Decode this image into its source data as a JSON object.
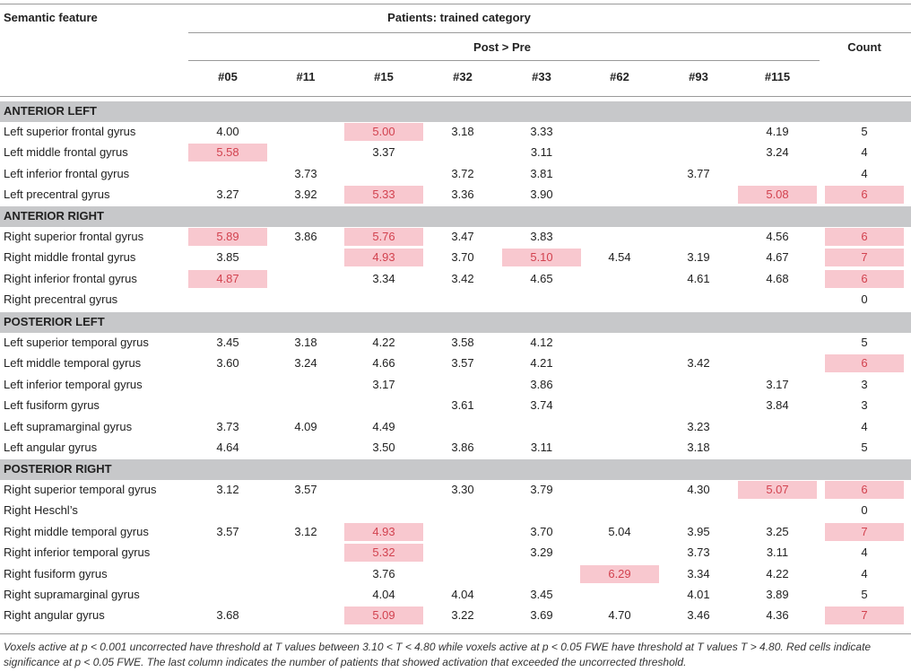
{
  "header": {
    "semantic_feature": "Semantic feature",
    "group": "Patients: trained category",
    "contrast": "Post > Pre",
    "count": "Count",
    "patients": [
      "#05",
      "#11",
      "#15",
      "#32",
      "#33",
      "#62",
      "#93",
      "#115"
    ]
  },
  "colors": {
    "significant_bg": "#f8c8cf",
    "significant_text": "#d2424f",
    "section_bg": "#c7c8ca"
  },
  "sections": [
    {
      "title": "ANTERIOR LEFT",
      "rows": [
        {
          "label": "Left superior frontal gyrus",
          "values": [
            "4.00",
            "",
            "5.00",
            "3.18",
            "3.33",
            "",
            "",
            "4.19"
          ],
          "count": "5",
          "sig": [
            2
          ]
        },
        {
          "label": "Left middle frontal gyrus",
          "values": [
            "5.58",
            "",
            "3.37",
            "",
            "3.11",
            "",
            "",
            "3.24"
          ],
          "count": "4",
          "sig": [
            0
          ]
        },
        {
          "label": "Left inferior frontal gyrus",
          "values": [
            "",
            "3.73",
            "",
            "3.72",
            "3.81",
            "",
            "3.77",
            ""
          ],
          "count": "4",
          "sig": []
        },
        {
          "label": "Left precentral gyrus",
          "values": [
            "3.27",
            "3.92",
            "5.33",
            "3.36",
            "3.90",
            "",
            "",
            "5.08"
          ],
          "count": "6",
          "sig": [
            2,
            7,
            8
          ]
        }
      ]
    },
    {
      "title": "ANTERIOR RIGHT",
      "rows": [
        {
          "label": "Right superior frontal gyrus",
          "values": [
            "5.89",
            "3.86",
            "5.76",
            "3.47",
            "3.83",
            "",
            "",
            "4.56"
          ],
          "count": "6",
          "sig": [
            0,
            2,
            8
          ]
        },
        {
          "label": "Right middle frontal gyrus",
          "values": [
            "3.85",
            "",
            "4.93",
            "3.70",
            "5.10",
            "4.54",
            "3.19",
            "4.67"
          ],
          "count": "7",
          "sig": [
            2,
            4,
            8
          ]
        },
        {
          "label": "Right inferior frontal gyrus",
          "values": [
            "4.87",
            "",
            "3.34",
            "3.42",
            "4.65",
            "",
            "4.61",
            "4.68"
          ],
          "count": "6",
          "sig": [
            0,
            8
          ]
        },
        {
          "label": "Right precentral gyrus",
          "values": [
            "",
            "",
            "",
            "",
            "",
            "",
            "",
            ""
          ],
          "count": "0",
          "sig": []
        }
      ]
    },
    {
      "title": "POSTERIOR LEFT",
      "rows": [
        {
          "label": "Left superior temporal gyrus",
          "values": [
            "3.45",
            "3.18",
            "4.22",
            "3.58",
            "4.12",
            "",
            "",
            ""
          ],
          "count": "5",
          "sig": []
        },
        {
          "label": "Left middle temporal gyrus",
          "values": [
            "3.60",
            "3.24",
            "4.66",
            "3.57",
            "4.21",
            "",
            "3.42",
            ""
          ],
          "count": "6",
          "sig": [
            8
          ]
        },
        {
          "label": "Left inferior temporal gyrus",
          "values": [
            "",
            "",
            "3.17",
            "",
            "3.86",
            "",
            "",
            "3.17"
          ],
          "count": "3",
          "sig": []
        },
        {
          "label": "Left fusiform gyrus",
          "values": [
            "",
            "",
            "",
            "3.61",
            "3.74",
            "",
            "",
            "3.84"
          ],
          "count": "3",
          "sig": []
        },
        {
          "label": "Left supramarginal gyrus",
          "values": [
            "3.73",
            "4.09",
            "4.49",
            "",
            "",
            "",
            "3.23",
            ""
          ],
          "count": "4",
          "sig": []
        },
        {
          "label": "Left angular gyrus",
          "values": [
            "4.64",
            "",
            "3.50",
            "3.86",
            "3.11",
            "",
            "3.18",
            ""
          ],
          "count": "5",
          "sig": []
        }
      ]
    },
    {
      "title": "POSTERIOR RIGHT",
      "rows": [
        {
          "label": "Right superior temporal gyrus",
          "values": [
            "3.12",
            "3.57",
            "",
            "3.30",
            "3.79",
            "",
            "4.30",
            "5.07"
          ],
          "count": "6",
          "sig": [
            7,
            8
          ]
        },
        {
          "label": "Right Heschl’s",
          "values": [
            "",
            "",
            "",
            "",
            "",
            "",
            "",
            ""
          ],
          "count": "0",
          "sig": []
        },
        {
          "label": "Right middle temporal gyrus",
          "values": [
            "3.57",
            "3.12",
            "4.93",
            "",
            "3.70",
            "5.04",
            "3.95",
            "3.25"
          ],
          "count": "7",
          "sig": [
            2,
            8
          ]
        },
        {
          "label": "Right inferior temporal gyrus",
          "values": [
            "",
            "",
            "5.32",
            "",
            "3.29",
            "",
            "3.73",
            "3.11"
          ],
          "count": "4",
          "sig": [
            2
          ]
        },
        {
          "label": "Right fusiform gyrus",
          "values": [
            "",
            "",
            "3.76",
            "",
            "",
            "6.29",
            "3.34",
            "4.22"
          ],
          "count": "4",
          "sig": [
            5
          ]
        },
        {
          "label": "Right supramarginal gyrus",
          "values": [
            "",
            "",
            "4.04",
            "4.04",
            "3.45",
            "",
            "4.01",
            "3.89"
          ],
          "count": "5",
          "sig": []
        },
        {
          "label": "Right angular gyrus",
          "values": [
            "3.68",
            "",
            "5.09",
            "3.22",
            "3.69",
            "4.70",
            "3.46",
            "4.36"
          ],
          "count": "7",
          "sig": [
            2,
            8
          ]
        }
      ]
    }
  ],
  "footnote": "Voxels active at p < 0.001 uncorrected have threshold at T values between 3.10 < T < 4.80 while voxels active at p < 0.05 FWE have threshold at T values T > 4.80. Red cells indicate significance at p < 0.05 FWE. The last column indicates the number of patients that showed activation that exceeded the uncorrected threshold."
}
